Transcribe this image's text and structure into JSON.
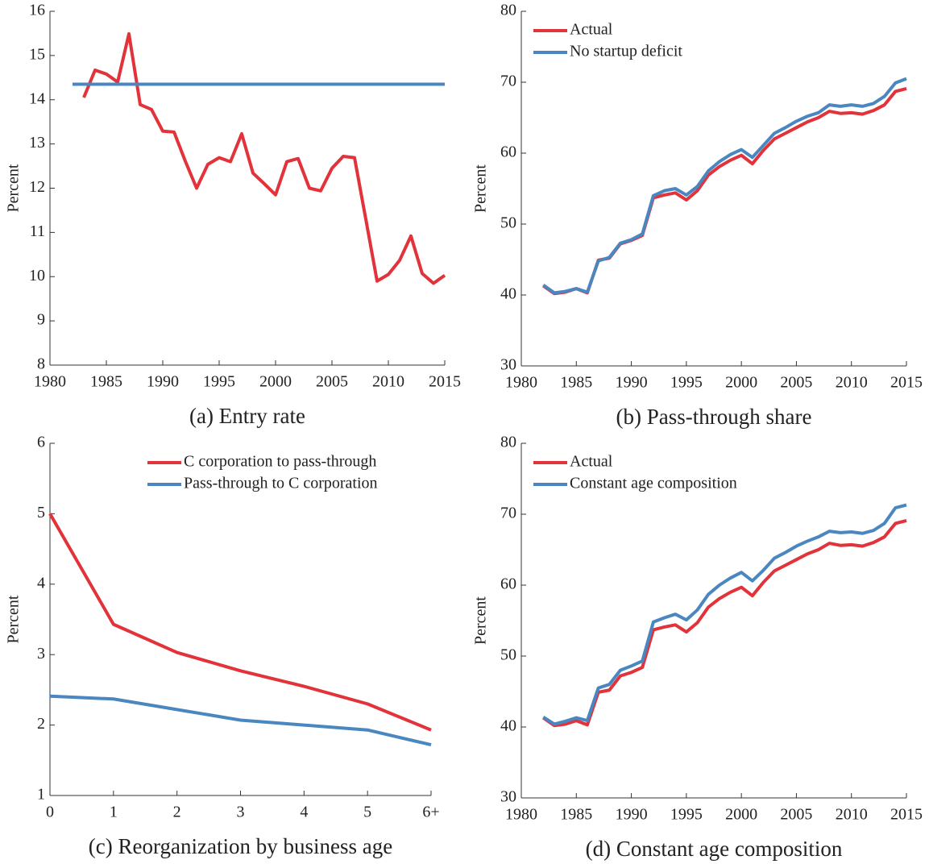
{
  "chart_data": [
    {
      "type": "line",
      "title": "(a) Entry rate",
      "ylabel": "Percent",
      "xlim": [
        1980,
        2015
      ],
      "xticks": [
        1980,
        1985,
        1990,
        1995,
        2000,
        2005,
        2010,
        2015
      ],
      "ylim": [
        8,
        16
      ],
      "yticks": [
        8,
        9,
        10,
        11,
        12,
        13,
        14,
        15,
        16
      ],
      "series": [
        {
          "color": "#e2323a",
          "x": [
            1983,
            1984,
            1985,
            1986,
            1987,
            1988,
            1989,
            1990,
            1991,
            1992,
            1993,
            1994,
            1995,
            1996,
            1997,
            1998,
            1999,
            2000,
            2001,
            2002,
            2003,
            2004,
            2005,
            2006,
            2007,
            2008,
            2009,
            2010,
            2011,
            2012,
            2013,
            2014,
            2015
          ],
          "values": [
            14.05,
            14.67,
            14.58,
            14.4,
            15.49,
            13.89,
            13.78,
            13.29,
            13.27,
            12.61,
            12.0,
            12.54,
            12.69,
            12.6,
            13.23,
            12.34,
            12.1,
            11.85,
            12.6,
            12.67,
            12.0,
            11.94,
            12.45,
            12.72,
            12.69,
            11.3,
            9.9,
            10.05,
            10.37,
            10.92,
            10.07,
            9.85,
            10.03
          ]
        },
        {
          "color": "#4a87c0",
          "x": [
            1982,
            2015
          ],
          "values": [
            14.35,
            14.35
          ]
        }
      ]
    },
    {
      "type": "line",
      "title": "(b) Pass-through share",
      "ylabel": "Percent",
      "legend": "upper left",
      "xlim": [
        1980,
        2015
      ],
      "xticks": [
        1980,
        1985,
        1990,
        1995,
        2000,
        2005,
        2010,
        2015
      ],
      "ylim": [
        30,
        80
      ],
      "yticks": [
        30,
        40,
        50,
        60,
        70,
        80
      ],
      "x": [
        1982,
        1983,
        1984,
        1985,
        1986,
        1987,
        1988,
        1989,
        1990,
        1991,
        1992,
        1993,
        1994,
        1995,
        1996,
        1997,
        1998,
        1999,
        2000,
        2001,
        2002,
        2003,
        2004,
        2005,
        2006,
        2007,
        2008,
        2009,
        2010,
        2011,
        2012,
        2013,
        2014,
        2015
      ],
      "series": [
        {
          "name": "Actual",
          "color": "#e2323a",
          "values": [
            41.3,
            40.2,
            40.4,
            40.9,
            40.3,
            44.9,
            45.2,
            47.2,
            47.7,
            48.4,
            53.7,
            54.1,
            54.4,
            53.4,
            54.7,
            56.9,
            58.1,
            59.0,
            59.7,
            58.5,
            60.4,
            62.0,
            62.8,
            63.6,
            64.4,
            65.0,
            65.9,
            65.6,
            65.7,
            65.5,
            66.0,
            66.8,
            68.7,
            69.1
          ]
        },
        {
          "name": "No startup deficit",
          "color": "#4a87c0",
          "values": [
            41.4,
            40.3,
            40.5,
            40.9,
            40.4,
            44.8,
            45.3,
            47.3,
            47.8,
            48.6,
            54.0,
            54.7,
            55.0,
            54.1,
            55.3,
            57.5,
            58.8,
            59.8,
            60.5,
            59.4,
            61.1,
            62.8,
            63.6,
            64.5,
            65.2,
            65.7,
            66.8,
            66.6,
            66.8,
            66.6,
            67.0,
            68.0,
            69.9,
            70.5
          ]
        }
      ]
    },
    {
      "type": "line",
      "title": "(c) Reorganization by business age",
      "ylabel": "Percent",
      "legend": "upper right",
      "categories": [
        "0",
        "1",
        "2",
        "3",
        "4",
        "5",
        "6+"
      ],
      "ylim": [
        1,
        6
      ],
      "yticks": [
        1,
        2,
        3,
        4,
        5,
        6
      ],
      "series": [
        {
          "name": "C corporation to pass-through",
          "color": "#e2323a",
          "values": [
            5.0,
            3.43,
            3.03,
            2.77,
            2.55,
            2.3,
            1.93
          ]
        },
        {
          "name": "Pass-through to C corporation",
          "color": "#4a87c0",
          "values": [
            2.41,
            2.37,
            2.22,
            2.07,
            2.0,
            1.93,
            1.72
          ]
        }
      ]
    },
    {
      "type": "line",
      "title": "(d) Constant age composition",
      "ylabel": "Percent",
      "legend": "upper left",
      "xlim": [
        1980,
        2015
      ],
      "xticks": [
        1980,
        1985,
        1990,
        1995,
        2000,
        2005,
        2010,
        2015
      ],
      "ylim": [
        30,
        80
      ],
      "yticks": [
        30,
        40,
        50,
        60,
        70,
        80
      ],
      "x": [
        1982,
        1983,
        1984,
        1985,
        1986,
        1987,
        1988,
        1989,
        1990,
        1991,
        1992,
        1993,
        1994,
        1995,
        1996,
        1997,
        1998,
        1999,
        2000,
        2001,
        2002,
        2003,
        2004,
        2005,
        2006,
        2007,
        2008,
        2009,
        2010,
        2011,
        2012,
        2013,
        2014,
        2015
      ],
      "series": [
        {
          "name": "Actual",
          "color": "#e2323a",
          "values": [
            41.3,
            40.2,
            40.4,
            40.9,
            40.3,
            44.9,
            45.2,
            47.2,
            47.7,
            48.4,
            53.7,
            54.1,
            54.4,
            53.4,
            54.7,
            56.9,
            58.1,
            59.0,
            59.7,
            58.5,
            60.4,
            62.0,
            62.8,
            63.6,
            64.4,
            65.0,
            65.9,
            65.6,
            65.7,
            65.5,
            66.0,
            66.8,
            68.7,
            69.1
          ]
        },
        {
          "name": "Constant age composition",
          "color": "#4a87c0",
          "values": [
            41.4,
            40.4,
            40.8,
            41.3,
            40.9,
            45.5,
            46.0,
            48.0,
            48.6,
            49.3,
            54.8,
            55.4,
            55.9,
            55.1,
            56.5,
            58.7,
            60.0,
            61.0,
            61.8,
            60.6,
            62.1,
            63.8,
            64.6,
            65.5,
            66.2,
            66.8,
            67.6,
            67.4,
            67.5,
            67.3,
            67.7,
            68.7,
            70.9,
            71.3
          ]
        }
      ]
    }
  ]
}
